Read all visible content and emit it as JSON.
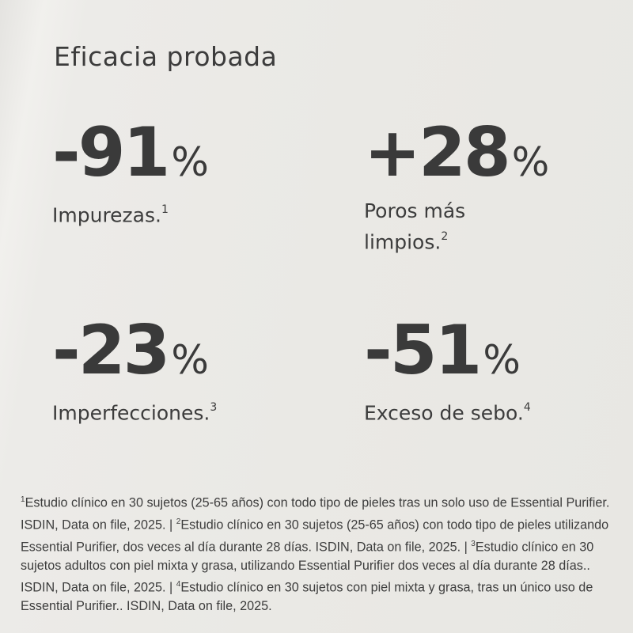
{
  "title": "Eficacia probada",
  "stats": [
    {
      "value": "-91",
      "unit": "%",
      "label": "Impurezas.",
      "note": "1"
    },
    {
      "value": "+28",
      "unit": "%",
      "label": "Poros más limpios.",
      "note": "2"
    },
    {
      "value": "-23",
      "unit": "%",
      "label": "Imperfecciones.",
      "note": "3"
    },
    {
      "value": "-51",
      "unit": "%",
      "label": "Exceso de sebo.",
      "note": "4"
    }
  ],
  "footnotes": [
    {
      "n": "1",
      "text": "Estudio clínico en 30 sujetos (25-65 años) con todo tipo de pieles tras un solo uso de Essential Purifier. ISDIN, Data on file, 2025. | "
    },
    {
      "n": "2",
      "text": "Estudio clínico en 30 sujetos (25-65 años) con todo tipo de pieles utilizando Essential Purifier, dos veces al día durante 28 días. ISDIN, Data on file, 2025. | "
    },
    {
      "n": "3",
      "text": "Estudio clínico en 30 sujetos adultos con piel mixta y grasa, utilizando Essential Purifier dos veces al día durante 28 días.. ISDIN, Data on file, 2025. | "
    },
    {
      "n": "4",
      "text": "Estudio clínico en 30 sujetos con piel mixta y grasa, tras un único uso de Essential Purifier.. ISDIN, Data on file, 2025."
    }
  ]
}
